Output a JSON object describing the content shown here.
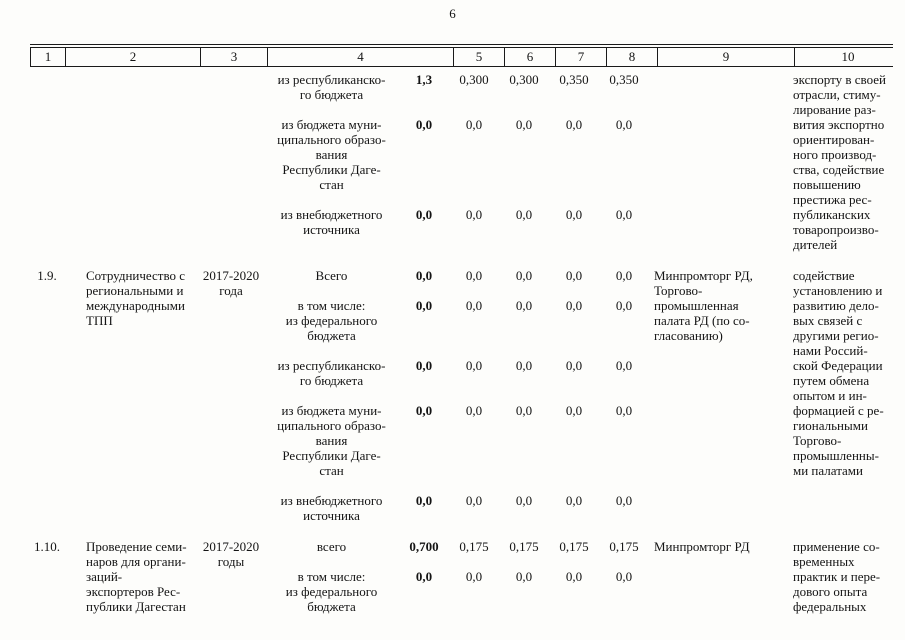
{
  "page": {
    "number": "6"
  },
  "table": {
    "header": [
      "1",
      "2",
      "3",
      "4",
      "5",
      "6",
      "7",
      "8",
      "9",
      "10"
    ],
    "groups": [
      {
        "num": "",
        "name": "",
        "period": "",
        "executor": "",
        "outcome": "экспорту в своей\nотрасли, стиму-\nлирование раз-\nвития экспортно\nориентирован-\nного производ-\nства, содействие\nповышению\nпрестижа рес-\nпубликанских\nтоваропроизво-\nдителей",
        "rows": [
          {
            "label": "из республиканско-\nго бюджета",
            "total": "1,3",
            "values": [
              "0,300",
              "0,300",
              "0,350",
              "0,350"
            ]
          },
          {
            "label": "из бюджета муни-\nципального образо-\nвания\nРеспублики Даге-\nстан",
            "total": "0,0",
            "values": [
              "0,0",
              "0,0",
              "0,0",
              "0,0"
            ]
          },
          {
            "label": "из внебюджетного\nисточника",
            "total": "0,0",
            "values": [
              "0,0",
              "0,0",
              "0,0",
              "0,0"
            ]
          }
        ]
      },
      {
        "num": "1.9.",
        "name": "Сотрудничество с\nрегиональными и\nмеждународными\nТПП",
        "period": "2017-2020\nгода",
        "executor": "Минпромторг РД,\nТоргово-\nпромышленная\nпалата РД (по со-\nгласованию)",
        "outcome": "содействие\nустановлению и\nразвитию дело-\nвых связей с\nдругими регио-\nнами Россий-\nской Федерации\nпутем обмена\nопытом и ин-\nформацией с ре-\nгиональными\nТоргово-\nпромышленны-\nми палатами",
        "rows": [
          {
            "label": "Всего",
            "total": "0,0",
            "values": [
              "0,0",
              "0,0",
              "0,0",
              "0,0"
            ]
          },
          {
            "label": "в том числе:\nиз федерального\nбюджета",
            "total": "0,0",
            "values": [
              "0,0",
              "0,0",
              "0,0",
              "0,0"
            ]
          },
          {
            "label": "из республиканско-\nго бюджета",
            "total": "0,0",
            "values": [
              "0,0",
              "0,0",
              "0,0",
              "0,0"
            ]
          },
          {
            "label": "из бюджета муни-\nципального образо-\nвания\nРеспублики Даге-\nстан",
            "total": "0,0",
            "values": [
              "0,0",
              "0,0",
              "0,0",
              "0,0"
            ]
          },
          {
            "label": "из внебюджетного\nисточника",
            "total": "0,0",
            "values": [
              "0,0",
              "0,0",
              "0,0",
              "0,0"
            ]
          }
        ]
      },
      {
        "num": "1.10.",
        "name": "Проведение семи-\nнаров для органи-\nзаций-\nэкспортеров Рес-\nпублики Дагестан",
        "period": "2017-2020\nгоды",
        "executor": "Минпромторг РД",
        "outcome": "применение со-\nвременных\nпрактик и пере-\nдового опыта\nфедеральных",
        "rows": [
          {
            "label": "всего",
            "total": "0,700",
            "values": [
              "0,175",
              "0,175",
              "0,175",
              "0,175"
            ]
          },
          {
            "label": "в том числе:\nиз федерального\nбюджета",
            "total": "0,0",
            "values": [
              "0,0",
              "0,0",
              "0,0",
              "0,0"
            ]
          }
        ]
      }
    ]
  }
}
